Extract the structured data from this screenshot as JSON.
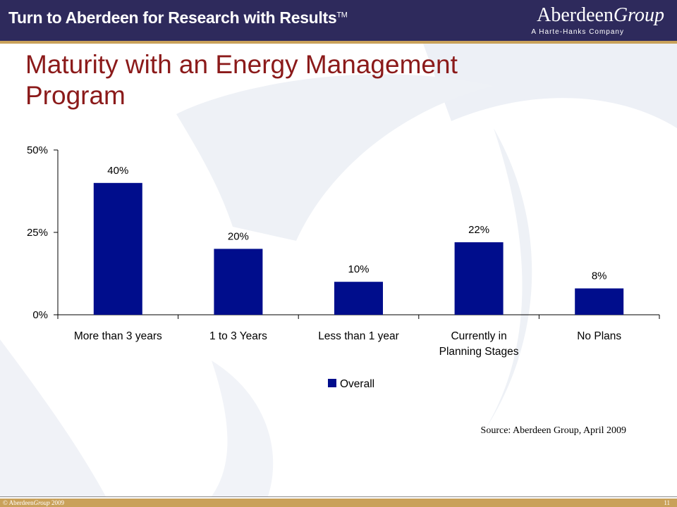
{
  "header": {
    "tagline": "Turn to Aberdeen for Research with Results",
    "tm": "TM",
    "logo_main": "Aberdeen",
    "logo_group": "Group",
    "logo_sub": "A Harte-Hanks Company"
  },
  "slide": {
    "title_line1": "Maturity with an Energy Management",
    "title_line2": "Program"
  },
  "chart_data": {
    "type": "bar",
    "title": "",
    "categories": [
      [
        "More than 3 years"
      ],
      [
        "1 to 3 Years"
      ],
      [
        "Less than 1 year"
      ],
      [
        "Currently in",
        "Planning Stages"
      ],
      [
        "No Plans"
      ]
    ],
    "series": [
      {
        "name": "Overall",
        "values": [
          40,
          20,
          10,
          22,
          8
        ],
        "labels": [
          "40%",
          "20%",
          "10%",
          "22%",
          "8%"
        ],
        "color": "#000d8c"
      }
    ],
    "ylim": [
      0,
      50
    ],
    "yticks": [
      0,
      25,
      50
    ],
    "ytick_labels": [
      "0%",
      "25%",
      "50%"
    ],
    "grid": false,
    "legend": "bottom"
  },
  "footer": {
    "source": "Source: Aberdeen Group, April 2009",
    "copyright_prefix": "© Aberdeen",
    "copyright_group": "Group",
    "copyright_year": "2009",
    "page_number": "11"
  },
  "colors": {
    "banner": "#2e2a5c",
    "accent": "#c9a15a",
    "title": "#8b1a1a",
    "bar": "#000d8c"
  }
}
